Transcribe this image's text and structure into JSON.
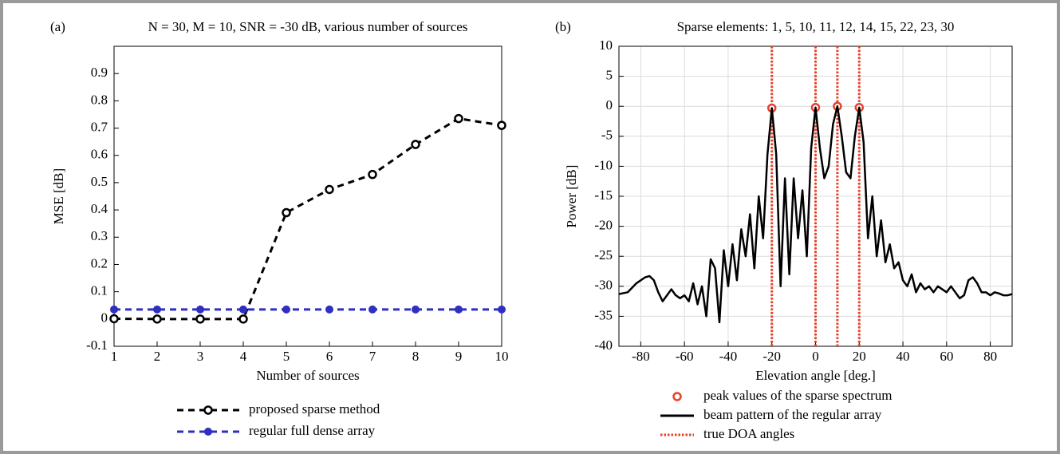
{
  "chart_data": [
    {
      "type": "line",
      "panel_label": "(a)",
      "title": "N = 30, M = 10, SNR = -30 dB, various number of sources",
      "xlabel": "Number of sources",
      "ylabel": "MSE [dB]",
      "x": [
        1,
        2,
        3,
        4,
        5,
        6,
        7,
        8,
        9,
        10
      ],
      "xlim": [
        1,
        10
      ],
      "xticks": [
        1,
        2,
        3,
        4,
        5,
        6,
        7,
        8,
        9,
        10
      ],
      "ylim": [
        -0.1,
        1.0
      ],
      "yticks": [
        -0.1,
        0,
        0.1,
        0.2,
        0.3,
        0.4,
        0.5,
        0.6,
        0.7,
        0.8,
        0.9
      ],
      "grid": false,
      "series": [
        {
          "name": "proposed sparse method",
          "color": "#000000",
          "line_style": "dashed",
          "marker": "open-circle",
          "values": [
            0.001,
            0.0,
            0.0,
            0.0,
            0.39,
            0.475,
            0.53,
            0.64,
            0.735,
            0.71
          ]
        },
        {
          "name": "regular full dense array",
          "color": "#2f2fc0",
          "line_style": "dashed",
          "marker": "filled-circle",
          "values": [
            0.035,
            0.035,
            0.035,
            0.035,
            0.035,
            0.035,
            0.035,
            0.035,
            0.035,
            0.035
          ]
        }
      ]
    },
    {
      "type": "line",
      "panel_label": "(b)",
      "title": "Sparse elements: 1, 5, 10, 11, 12, 14, 15, 22, 23, 30",
      "xlabel": "Elevation angle [deg.]",
      "ylabel": "Power [dB]",
      "xlim": [
        -90,
        90
      ],
      "xticks": [
        -80,
        -60,
        -40,
        -20,
        0,
        20,
        40,
        60,
        80
      ],
      "ylim": [
        -40,
        10
      ],
      "yticks": [
        -40,
        -35,
        -30,
        -25,
        -20,
        -15,
        -10,
        -5,
        0,
        5,
        10
      ],
      "grid": true,
      "series": [
        {
          "name": "peak values of the sparse spectrum",
          "color": "#e8402a",
          "line_style": "none",
          "marker": "open-circle",
          "x": [
            -20,
            0,
            10,
            20
          ],
          "values": [
            -0.3,
            -0.2,
            0,
            -0.2
          ]
        },
        {
          "name": "beam pattern of the regular array",
          "color": "#000000",
          "line_style": "solid",
          "marker": "none",
          "x": [
            -90,
            -86,
            -82,
            -78,
            -76,
            -74,
            -72,
            -70,
            -68,
            -66,
            -64,
            -62,
            -60,
            -58,
            -56,
            -54,
            -52,
            -50,
            -48,
            -46,
            -44,
            -42,
            -40,
            -38,
            -36,
            -34,
            -32,
            -30,
            -28,
            -26,
            -24,
            -22,
            -20,
            -18,
            -16,
            -14,
            -12,
            -10,
            -8,
            -6,
            -4,
            -2,
            0,
            2,
            4,
            6,
            8,
            10,
            12,
            14,
            16,
            18,
            20,
            22,
            24,
            26,
            28,
            30,
            32,
            34,
            36,
            38,
            40,
            42,
            44,
            46,
            48,
            50,
            52,
            54,
            56,
            58,
            60,
            62,
            64,
            66,
            68,
            70,
            72,
            74,
            76,
            78,
            80,
            82,
            84,
            86,
            88,
            90
          ],
          "values": [
            -31.3,
            -31,
            -29.5,
            -28.5,
            -28.3,
            -29,
            -31,
            -32.5,
            -31.5,
            -30.5,
            -31.5,
            -32,
            -31.5,
            -32.5,
            -29.5,
            -33,
            -30,
            -35,
            -25.5,
            -27,
            -36,
            -24,
            -30,
            -23,
            -29,
            -20.5,
            -25,
            -18,
            -27,
            -15,
            -22,
            -8,
            -0.3,
            -8,
            -30,
            -12,
            -28,
            -12,
            -22,
            -14,
            -25,
            -7,
            -0.2,
            -7,
            -12,
            -10,
            -3,
            0,
            -5,
            -11,
            -12,
            -5,
            -0.2,
            -6,
            -22,
            -15,
            -25,
            -19,
            -26,
            -23,
            -27,
            -26,
            -29,
            -30,
            -28,
            -31,
            -29.5,
            -30.5,
            -30,
            -31,
            -30,
            -30.5,
            -31,
            -30,
            -31,
            -32,
            -31.5,
            -29,
            -28.5,
            -29.5,
            -31,
            -31,
            -31.5,
            -31,
            -31.2,
            -31.5,
            -31.5,
            -31.3
          ]
        },
        {
          "name": "true DOA angles",
          "color": "#e8402a",
          "line_style": "vline",
          "marker": "none",
          "x": [
            -20,
            0,
            10,
            20
          ]
        }
      ]
    }
  ]
}
